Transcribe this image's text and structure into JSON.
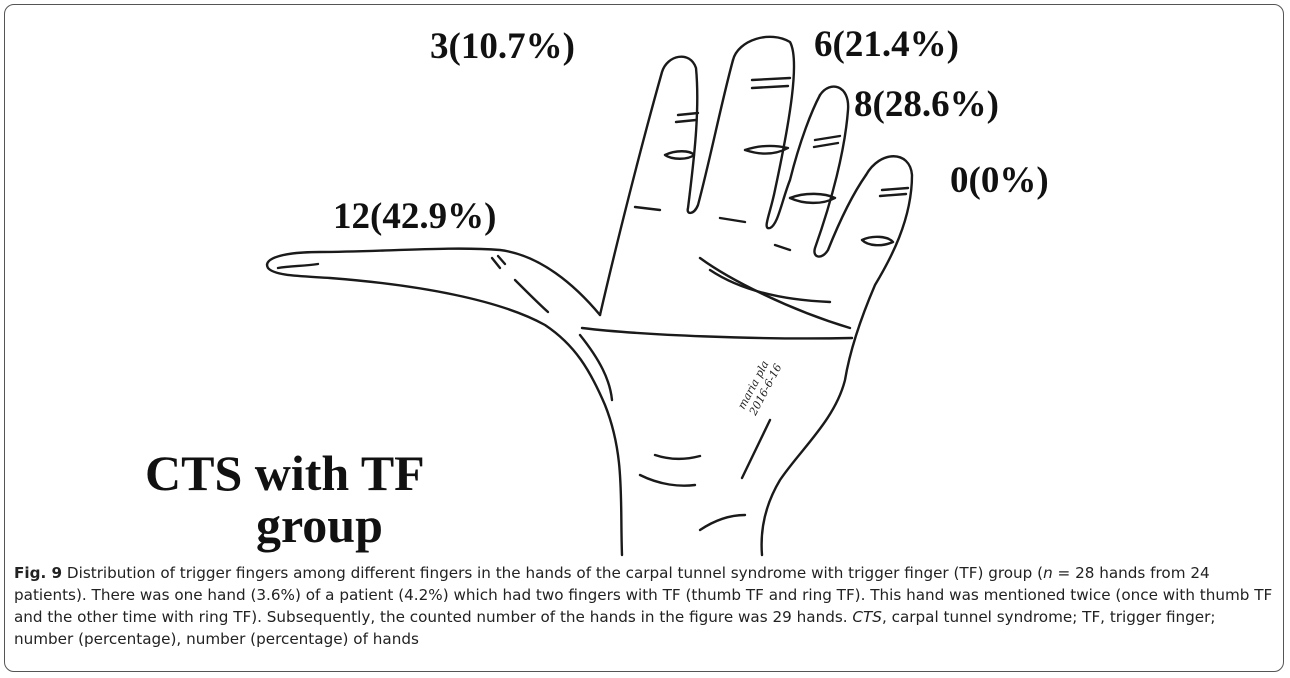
{
  "figure": {
    "labels": {
      "index": "3(10.7%)",
      "middle": "6(21.4%)",
      "ring": "8(28.6%)",
      "little": "0(0%)",
      "thumb": "12(42.9%)"
    },
    "group_title": [
      "CTS with TF",
      "group"
    ],
    "signature": [
      "maria pla",
      "2016-6-16"
    ]
  },
  "caption": {
    "fig_label": "Fig. 9",
    "text_1": " Distribution of trigger fingers among different fingers in the hands of the carpal tunnel syndrome with trigger finger (TF) group (",
    "n_symbol": "n",
    "text_2": " = 28 hands from 24 patients). There was one hand (3.6%) of a patient (4.2%) which had two fingers with TF (thumb TF and ring TF). This hand was mentioned twice (once with thumb TF and the other time with ring TF). Subsequently, the counted number of the hands in the figure was 29 hands. ",
    "cts_abbr": "CTS",
    "text_3": ", carpal tunnel syndrome; TF, trigger finger; number (percentage), number (percentage) of hands"
  }
}
